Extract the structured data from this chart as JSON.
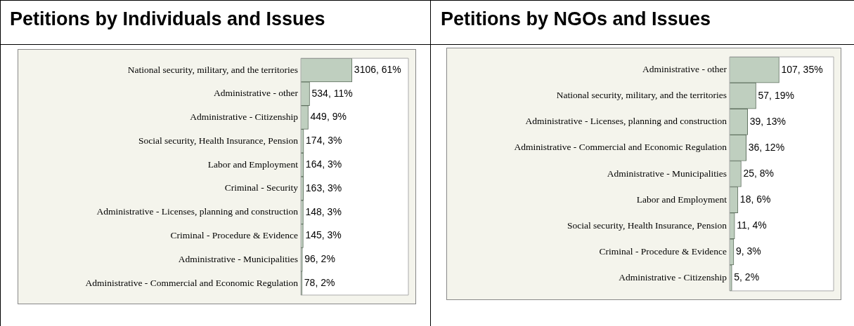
{
  "chart_data": [
    {
      "type": "bar",
      "orientation": "horizontal",
      "title": "Petitions by Individuals and Issues",
      "color": "#bfcfbf",
      "categories": [
        "National security, military, and the territories",
        "Administrative - other",
        "Administrative - Citizenship",
        "Social security, Health Insurance, Pension",
        "Labor and Employment",
        "Criminal - Security",
        "Administrative - Licenses, planning and construction",
        "Criminal - Procedure & Evidence",
        "Administrative - Municipalities",
        "Administrative - Commercial and Economic Regulation"
      ],
      "values": [
        3106,
        534,
        449,
        174,
        164,
        163,
        148,
        145,
        96,
        78
      ],
      "value_labels": [
        "3106, 61%",
        "534, 11%",
        "449, 9%",
        "174, 3%",
        "164, 3%",
        "163, 3%",
        "148, 3%",
        "145, 3%",
        "96, 2%",
        "78, 2%"
      ]
    },
    {
      "type": "bar",
      "orientation": "horizontal",
      "title": "Petitions by NGOs and Issues",
      "color": "#bfcfbf",
      "categories": [
        "Administrative - other",
        "National security, military, and the territories",
        "Administrative - Licenses, planning and construction",
        "Administrative - Commercial and Economic Regulation",
        "Administrative - Municipalities",
        "Labor and Employment",
        "Social security, Health Insurance, Pension",
        "Criminal - Procedure & Evidence",
        "Administrative - Citizenship"
      ],
      "values": [
        107,
        57,
        39,
        36,
        25,
        18,
        11,
        9,
        5
      ],
      "value_labels": [
        "107, 35%",
        "57, 19%",
        "39, 13%",
        "36, 12%",
        "25, 8%",
        "18, 6%",
        "11, 4%",
        "9, 3%",
        "5, 2%"
      ]
    }
  ]
}
